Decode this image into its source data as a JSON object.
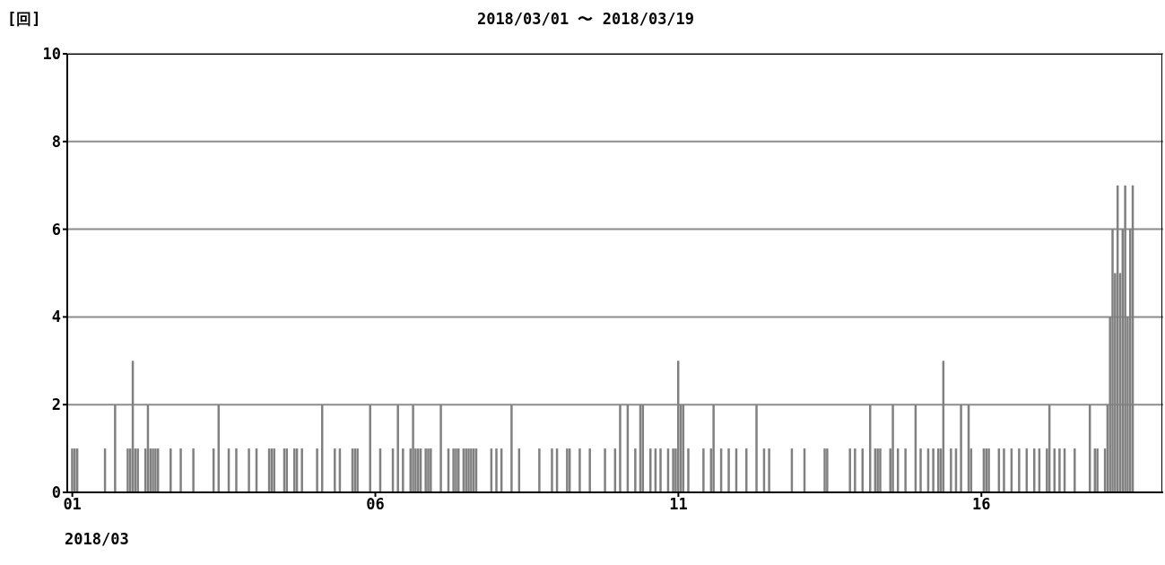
{
  "chart_data": {
    "type": "bar",
    "title": "2018/03/01 〜 2018/03/19",
    "ylabel": "[回]",
    "xlabel": "2018/03",
    "color": "#808080",
    "grid": "y",
    "x": [
      "2018-03-01T00:00",
      "2018-03-01T01:00",
      "2018-03-01T02:00",
      "2018-03-01T13:00",
      "2018-03-01T17:00",
      "2018-03-01T22:00",
      "2018-03-01T23:00",
      "2018-03-02T00:00",
      "2018-03-02T01:00",
      "2018-03-02T02:00",
      "2018-03-02T05:00",
      "2018-03-02T06:00",
      "2018-03-02T07:00",
      "2018-03-02T08:00",
      "2018-03-02T09:00",
      "2018-03-02T10:00",
      "2018-03-02T15:00",
      "2018-03-02T19:00",
      "2018-03-03T00:00",
      "2018-03-03T08:00",
      "2018-03-03T10:00",
      "2018-03-03T14:00",
      "2018-03-03T17:00",
      "2018-03-03T22:00",
      "2018-03-04T01:00",
      "2018-03-04T06:00",
      "2018-03-04T07:00",
      "2018-03-04T08:00",
      "2018-03-04T12:00",
      "2018-03-04T13:00",
      "2018-03-04T16:00",
      "2018-03-04T17:00",
      "2018-03-04T19:00",
      "2018-03-05T01:00",
      "2018-03-05T03:00",
      "2018-03-05T08:00",
      "2018-03-05T10:00",
      "2018-03-05T15:00",
      "2018-03-05T16:00",
      "2018-03-05T17:00",
      "2018-03-05T22:00",
      "2018-03-06T02:00",
      "2018-03-06T07:00",
      "2018-03-06T09:00",
      "2018-03-06T11:00",
      "2018-03-06T14:00",
      "2018-03-06T15:00",
      "2018-03-06T16:00",
      "2018-03-06T17:00",
      "2018-03-06T18:00",
      "2018-03-06T20:00",
      "2018-03-06T21:00",
      "2018-03-06T22:00",
      "2018-03-07T02:00",
      "2018-03-07T05:00",
      "2018-03-07T07:00",
      "2018-03-07T08:00",
      "2018-03-07T09:00",
      "2018-03-07T11:00",
      "2018-03-07T12:00",
      "2018-03-07T13:00",
      "2018-03-07T14:00",
      "2018-03-07T15:00",
      "2018-03-07T16:00",
      "2018-03-07T22:00",
      "2018-03-08T00:00",
      "2018-03-08T02:00",
      "2018-03-08T06:00",
      "2018-03-08T09:00",
      "2018-03-08T17:00",
      "2018-03-08T22:00",
      "2018-03-09T00:00",
      "2018-03-09T04:00",
      "2018-03-09T05:00",
      "2018-03-09T09:00",
      "2018-03-09T13:00",
      "2018-03-09T19:00",
      "2018-03-09T23:00",
      "2018-03-10T01:00",
      "2018-03-10T04:00",
      "2018-03-10T07:00",
      "2018-03-10T09:00",
      "2018-03-10T10:00",
      "2018-03-10T13:00",
      "2018-03-10T15:00",
      "2018-03-10T17:00",
      "2018-03-10T20:00",
      "2018-03-10T22:00",
      "2018-03-10T23:00",
      "2018-03-11T00:00",
      "2018-03-11T01:00",
      "2018-03-11T02:00",
      "2018-03-11T04:00",
      "2018-03-11T10:00",
      "2018-03-11T13:00",
      "2018-03-11T14:00",
      "2018-03-11T17:00",
      "2018-03-11T20:00",
      "2018-03-11T23:00",
      "2018-03-12T03:00",
      "2018-03-12T07:00",
      "2018-03-12T10:00",
      "2018-03-12T12:00",
      "2018-03-12T21:00",
      "2018-03-13T02:00",
      "2018-03-13T10:00",
      "2018-03-13T11:00",
      "2018-03-13T20:00",
      "2018-03-13T22:00",
      "2018-03-14T01:00",
      "2018-03-14T04:00",
      "2018-03-14T06:00",
      "2018-03-14T07:00",
      "2018-03-14T08:00",
      "2018-03-14T12:00",
      "2018-03-14T13:00",
      "2018-03-14T15:00",
      "2018-03-14T18:00",
      "2018-03-14T22:00",
      "2018-03-15T00:00",
      "2018-03-15T03:00",
      "2018-03-15T05:00",
      "2018-03-15T07:00",
      "2018-03-15T08:00",
      "2018-03-15T09:00",
      "2018-03-15T12:00",
      "2018-03-15T14:00",
      "2018-03-15T16:00",
      "2018-03-15T19:00",
      "2018-03-15T20:00",
      "2018-03-16T01:00",
      "2018-03-16T02:00",
      "2018-03-16T03:00",
      "2018-03-16T07:00",
      "2018-03-16T09:00",
      "2018-03-16T12:00",
      "2018-03-16T15:00",
      "2018-03-16T18:00",
      "2018-03-16T21:00",
      "2018-03-16T23:00",
      "2018-03-17T02:00",
      "2018-03-17T03:00",
      "2018-03-17T05:00",
      "2018-03-17T07:00",
      "2018-03-17T09:00",
      "2018-03-17T13:00",
      "2018-03-17T19:00",
      "2018-03-17T21:00",
      "2018-03-17T22:00",
      "2018-03-18T01:00",
      "2018-03-18T02:00",
      "2018-03-18T03:00",
      "2018-03-18T04:00",
      "2018-03-18T05:00",
      "2018-03-18T06:00",
      "2018-03-18T07:00",
      "2018-03-18T08:00",
      "2018-03-18T09:00",
      "2018-03-18T10:00",
      "2018-03-18T11:00",
      "2018-03-18T12:00"
    ],
    "values": [
      1,
      1,
      1,
      1,
      2,
      1,
      1,
      3,
      1,
      1,
      1,
      2,
      1,
      1,
      1,
      1,
      1,
      1,
      1,
      1,
      2,
      1,
      1,
      1,
      1,
      1,
      1,
      1,
      1,
      1,
      1,
      1,
      1,
      1,
      2,
      1,
      1,
      1,
      1,
      1,
      2,
      1,
      1,
      2,
      1,
      1,
      2,
      1,
      1,
      1,
      1,
      1,
      1,
      2,
      1,
      1,
      1,
      1,
      1,
      1,
      1,
      1,
      1,
      1,
      1,
      1,
      1,
      2,
      1,
      1,
      1,
      1,
      1,
      1,
      1,
      1,
      1,
      1,
      2,
      2,
      1,
      2,
      2,
      1,
      1,
      1,
      1,
      1,
      1,
      3,
      2,
      2,
      1,
      1,
      1,
      2,
      1,
      1,
      1,
      1,
      2,
      1,
      1,
      1,
      1,
      1,
      1,
      1,
      1,
      1,
      2,
      1,
      1,
      1,
      1,
      2,
      1,
      1,
      2,
      1,
      1,
      1,
      1,
      1,
      3,
      1,
      1,
      2,
      2,
      1,
      1,
      1,
      1,
      1,
      1,
      1,
      1,
      1,
      1,
      1,
      1,
      2,
      1,
      1,
      1,
      1,
      2,
      1,
      1,
      1,
      2,
      4,
      6,
      5,
      7,
      5,
      6,
      7,
      4,
      6,
      7
    ],
    "xlim": [
      "2018-02-28T22:00",
      "2018-03-19T00:00"
    ],
    "xticks": [
      {
        "value": "2018-03-01",
        "label": "01"
      },
      {
        "value": "2018-03-06",
        "label": "06"
      },
      {
        "value": "2018-03-11",
        "label": "11"
      },
      {
        "value": "2018-03-16",
        "label": "16"
      }
    ],
    "ylim": [
      0,
      10
    ],
    "yticks": [
      0,
      2,
      4,
      6,
      8,
      10
    ]
  }
}
